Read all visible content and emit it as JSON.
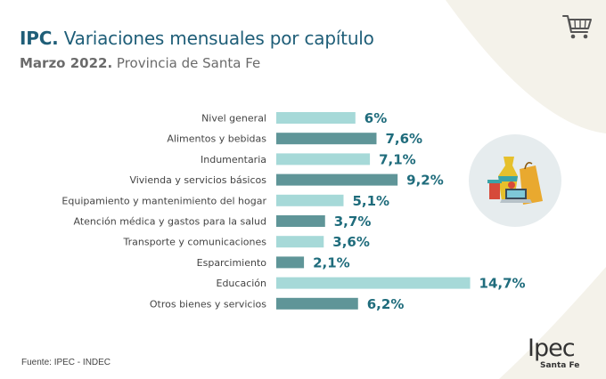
{
  "header": {
    "title_bold": "IPC.",
    "title_rest": " Variaciones mensuales por capítulo",
    "subtitle_bold": "Marzo 2022.",
    "subtitle_rest": " Provincia de Santa Fe"
  },
  "icons": {
    "top_right": "shopping-cart-icon",
    "illustration": "shopping-items-icon"
  },
  "colors": {
    "bar_light": "#a6d9d8",
    "bar_dark": "#5f9598",
    "value_text": "#1f6c7c",
    "title": "#1f5e78",
    "background_curve": "#f3f1e8"
  },
  "chart_data": {
    "type": "bar",
    "orientation": "horizontal",
    "categories": [
      "Nivel general",
      "Alimentos y bebidas",
      "Indumentaria",
      "Vivienda y servicios básicos",
      "Equipamiento y mantenimiento del hogar",
      "Atención médica y gastos para la salud",
      "Transporte y comunicaciones",
      "Esparcimiento",
      "Educación",
      "Otros bienes y servicios"
    ],
    "values": [
      6,
      7.6,
      7.1,
      9.2,
      5.1,
      3.7,
      3.6,
      2.1,
      14.7,
      6.2
    ],
    "value_labels": [
      "6%",
      "7,6%",
      "7,1%",
      "9,2%",
      "5,1%",
      "3,7%",
      "3,6%",
      "2,1%",
      "14,7%",
      "6,2%"
    ],
    "bar_shades": [
      "light",
      "dark",
      "light",
      "dark",
      "light",
      "dark",
      "light",
      "dark",
      "light",
      "dark"
    ],
    "title": "IPC. Variaciones mensuales por capítulo",
    "xlabel": "",
    "ylabel": "",
    "grid": false
  },
  "footer": {
    "source": "Fuente: IPEC - INDEC",
    "logo_main": "Ipec",
    "logo_sub": "Santa Fe"
  }
}
